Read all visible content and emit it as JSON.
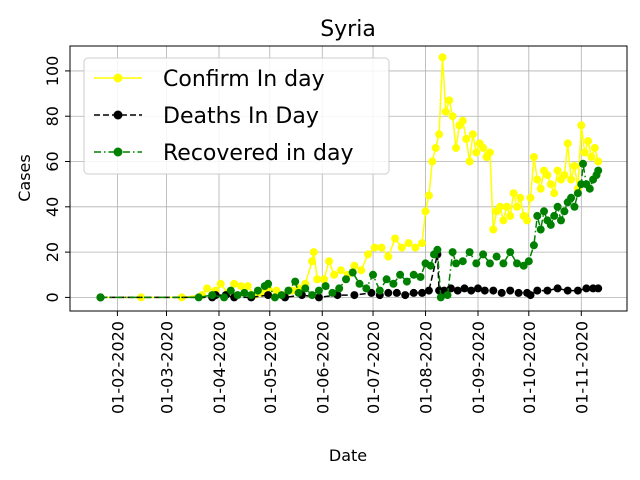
{
  "chart_data": {
    "type": "line",
    "title": "Syria",
    "xlabel": "Date",
    "ylabel": "Cases",
    "xlim": [
      "2020-01-04",
      "2020-11-28"
    ],
    "ylim": [
      -6,
      111
    ],
    "grid": true,
    "legend_position": "top-left",
    "x_ticks": [
      "2020-02-01",
      "2020-03-01",
      "2020-04-01",
      "2020-05-01",
      "2020-06-01",
      "2020-07-01",
      "2020-08-01",
      "2020-09-01",
      "2020-10-01",
      "2020-11-01"
    ],
    "x_tick_labels": [
      "01-02-2020",
      "01-03-2020",
      "01-04-2020",
      "01-05-2020",
      "01-06-2020",
      "01-07-2020",
      "01-08-2020",
      "01-09-2020",
      "01-10-2020",
      "01-11-2020"
    ],
    "y_ticks": [
      0,
      20,
      40,
      60,
      80,
      100
    ],
    "y_tick_labels": [
      "0",
      "20",
      "40",
      "60",
      "80",
      "100"
    ],
    "series": [
      {
        "name": "Confirm In day",
        "color": "#ffff00",
        "line_style": "solid",
        "marker": "circle",
        "points": [
          [
            "2020-01-22",
            0
          ],
          [
            "2020-02-15",
            0
          ],
          [
            "2020-03-10",
            0
          ],
          [
            "2020-03-22",
            1
          ],
          [
            "2020-03-25",
            4
          ],
          [
            "2020-03-30",
            3
          ],
          [
            "2020-04-02",
            6
          ],
          [
            "2020-04-06",
            2
          ],
          [
            "2020-04-10",
            6
          ],
          [
            "2020-04-14",
            5
          ],
          [
            "2020-04-18",
            5
          ],
          [
            "2020-04-22",
            1
          ],
          [
            "2020-04-26",
            2
          ],
          [
            "2020-04-30",
            4
          ],
          [
            "2020-05-05",
            3
          ],
          [
            "2020-05-10",
            1
          ],
          [
            "2020-05-14",
            3
          ],
          [
            "2020-05-18",
            4
          ],
          [
            "2020-05-22",
            6
          ],
          [
            "2020-05-26",
            16
          ],
          [
            "2020-05-27",
            20
          ],
          [
            "2020-05-29",
            8
          ],
          [
            "2020-06-02",
            8
          ],
          [
            "2020-06-05",
            16
          ],
          [
            "2020-06-08",
            10
          ],
          [
            "2020-06-12",
            12
          ],
          [
            "2020-06-16",
            10
          ],
          [
            "2020-06-20",
            14
          ],
          [
            "2020-06-24",
            12
          ],
          [
            "2020-06-28",
            19
          ],
          [
            "2020-07-02",
            22
          ],
          [
            "2020-07-06",
            22
          ],
          [
            "2020-07-10",
            18
          ],
          [
            "2020-07-14",
            26
          ],
          [
            "2020-07-18",
            22
          ],
          [
            "2020-07-22",
            24
          ],
          [
            "2020-07-26",
            22
          ],
          [
            "2020-07-30",
            24
          ],
          [
            "2020-08-01",
            38
          ],
          [
            "2020-08-03",
            45
          ],
          [
            "2020-08-05",
            60
          ],
          [
            "2020-08-07",
            66
          ],
          [
            "2020-08-09",
            72
          ],
          [
            "2020-08-11",
            106
          ],
          [
            "2020-08-13",
            82
          ],
          [
            "2020-08-15",
            87
          ],
          [
            "2020-08-17",
            80
          ],
          [
            "2020-08-19",
            66
          ],
          [
            "2020-08-21",
            76
          ],
          [
            "2020-08-23",
            78
          ],
          [
            "2020-08-25",
            70
          ],
          [
            "2020-08-27",
            60
          ],
          [
            "2020-08-29",
            72
          ],
          [
            "2020-08-31",
            64
          ],
          [
            "2020-09-02",
            68
          ],
          [
            "2020-09-04",
            66
          ],
          [
            "2020-09-06",
            62
          ],
          [
            "2020-09-08",
            64
          ],
          [
            "2020-09-10",
            30
          ],
          [
            "2020-09-12",
            38
          ],
          [
            "2020-09-14",
            40
          ],
          [
            "2020-09-16",
            34
          ],
          [
            "2020-09-18",
            40
          ],
          [
            "2020-09-20",
            36
          ],
          [
            "2020-09-22",
            46
          ],
          [
            "2020-09-24",
            40
          ],
          [
            "2020-09-26",
            44
          ],
          [
            "2020-09-28",
            36
          ],
          [
            "2020-09-30",
            34
          ],
          [
            "2020-10-02",
            44
          ],
          [
            "2020-10-04",
            62
          ],
          [
            "2020-10-06",
            52
          ],
          [
            "2020-10-08",
            48
          ],
          [
            "2020-10-10",
            56
          ],
          [
            "2020-10-12",
            54
          ],
          [
            "2020-10-14",
            50
          ],
          [
            "2020-10-16",
            46
          ],
          [
            "2020-10-18",
            56
          ],
          [
            "2020-10-20",
            52
          ],
          [
            "2020-10-22",
            54
          ],
          [
            "2020-10-24",
            68
          ],
          [
            "2020-10-26",
            52
          ],
          [
            "2020-10-28",
            58
          ],
          [
            "2020-10-30",
            48
          ],
          [
            "2020-11-01",
            76
          ],
          [
            "2020-11-03",
            64
          ],
          [
            "2020-11-05",
            69
          ],
          [
            "2020-11-07",
            62
          ],
          [
            "2020-11-09",
            66
          ],
          [
            "2020-11-11",
            60
          ]
        ]
      },
      {
        "name": "Deaths In Day",
        "color": "#000000",
        "line_style": "dashed",
        "marker": "circle",
        "points": [
          [
            "2020-01-22",
            0
          ],
          [
            "2020-03-28",
            0
          ],
          [
            "2020-03-30",
            1
          ],
          [
            "2020-04-05",
            1
          ],
          [
            "2020-04-10",
            0
          ],
          [
            "2020-04-20",
            0
          ],
          [
            "2020-04-30",
            1
          ],
          [
            "2020-05-10",
            0
          ],
          [
            "2020-05-20",
            1
          ],
          [
            "2020-05-30",
            0
          ],
          [
            "2020-06-10",
            1
          ],
          [
            "2020-06-20",
            1
          ],
          [
            "2020-06-30",
            2
          ],
          [
            "2020-07-05",
            1
          ],
          [
            "2020-07-10",
            2
          ],
          [
            "2020-07-15",
            2
          ],
          [
            "2020-07-20",
            1
          ],
          [
            "2020-07-25",
            2
          ],
          [
            "2020-07-30",
            2
          ],
          [
            "2020-08-03",
            3
          ],
          [
            "2020-08-08",
            19
          ],
          [
            "2020-08-09",
            3
          ],
          [
            "2020-08-12",
            3
          ],
          [
            "2020-08-16",
            4
          ],
          [
            "2020-08-20",
            3
          ],
          [
            "2020-08-24",
            4
          ],
          [
            "2020-08-28",
            3
          ],
          [
            "2020-09-01",
            4
          ],
          [
            "2020-09-05",
            3
          ],
          [
            "2020-09-10",
            3
          ],
          [
            "2020-09-15",
            2
          ],
          [
            "2020-09-20",
            3
          ],
          [
            "2020-09-25",
            2
          ],
          [
            "2020-09-30",
            2
          ],
          [
            "2020-10-02",
            1
          ],
          [
            "2020-10-06",
            3
          ],
          [
            "2020-10-12",
            3
          ],
          [
            "2020-10-18",
            4
          ],
          [
            "2020-10-24",
            3
          ],
          [
            "2020-10-30",
            3
          ],
          [
            "2020-11-04",
            4
          ],
          [
            "2020-11-08",
            4
          ],
          [
            "2020-11-11",
            4
          ]
        ]
      },
      {
        "name": "Recovered in day",
        "color": "#008000",
        "line_style": "dashdot",
        "marker": "circle",
        "points": [
          [
            "2020-01-22",
            0
          ],
          [
            "2020-03-20",
            0
          ],
          [
            "2020-03-28",
            1
          ],
          [
            "2020-04-04",
            0
          ],
          [
            "2020-04-08",
            3
          ],
          [
            "2020-04-12",
            1
          ],
          [
            "2020-04-16",
            2
          ],
          [
            "2020-04-20",
            1
          ],
          [
            "2020-04-24",
            3
          ],
          [
            "2020-04-28",
            5
          ],
          [
            "2020-04-30",
            6
          ],
          [
            "2020-05-04",
            0
          ],
          [
            "2020-05-08",
            1
          ],
          [
            "2020-05-12",
            3
          ],
          [
            "2020-05-16",
            7
          ],
          [
            "2020-05-18",
            2
          ],
          [
            "2020-05-22",
            4
          ],
          [
            "2020-05-26",
            1
          ],
          [
            "2020-05-30",
            3
          ],
          [
            "2020-06-03",
            5
          ],
          [
            "2020-06-07",
            2
          ],
          [
            "2020-06-11",
            4
          ],
          [
            "2020-06-15",
            8
          ],
          [
            "2020-06-19",
            11
          ],
          [
            "2020-06-23",
            6
          ],
          [
            "2020-06-27",
            4
          ],
          [
            "2020-07-01",
            10
          ],
          [
            "2020-07-05",
            3
          ],
          [
            "2020-07-09",
            8
          ],
          [
            "2020-07-13",
            6
          ],
          [
            "2020-07-17",
            10
          ],
          [
            "2020-07-21",
            7
          ],
          [
            "2020-07-25",
            10
          ],
          [
            "2020-07-29",
            9
          ],
          [
            "2020-08-01",
            15
          ],
          [
            "2020-08-04",
            14
          ],
          [
            "2020-08-06",
            19
          ],
          [
            "2020-08-08",
            21
          ],
          [
            "2020-08-10",
            0
          ],
          [
            "2020-08-14",
            1
          ],
          [
            "2020-08-17",
            20
          ],
          [
            "2020-08-19",
            15
          ],
          [
            "2020-08-23",
            16
          ],
          [
            "2020-08-27",
            20
          ],
          [
            "2020-08-31",
            15
          ],
          [
            "2020-09-04",
            19
          ],
          [
            "2020-09-08",
            15
          ],
          [
            "2020-09-12",
            18
          ],
          [
            "2020-09-16",
            15
          ],
          [
            "2020-09-20",
            20
          ],
          [
            "2020-09-24",
            15
          ],
          [
            "2020-09-28",
            14
          ],
          [
            "2020-10-01",
            16
          ],
          [
            "2020-10-04",
            23
          ],
          [
            "2020-10-06",
            36
          ],
          [
            "2020-10-08",
            30
          ],
          [
            "2020-10-10",
            38
          ],
          [
            "2020-10-12",
            34
          ],
          [
            "2020-10-14",
            32
          ],
          [
            "2020-10-16",
            36
          ],
          [
            "2020-10-18",
            40
          ],
          [
            "2020-10-20",
            34
          ],
          [
            "2020-10-22",
            38
          ],
          [
            "2020-10-24",
            42
          ],
          [
            "2020-10-26",
            44
          ],
          [
            "2020-10-28",
            40
          ],
          [
            "2020-10-30",
            46
          ],
          [
            "2020-11-01",
            50
          ],
          [
            "2020-11-02",
            59
          ],
          [
            "2020-11-04",
            50
          ],
          [
            "2020-11-06",
            48
          ],
          [
            "2020-11-08",
            52
          ],
          [
            "2020-11-10",
            54
          ],
          [
            "2020-11-11",
            56
          ]
        ]
      }
    ]
  }
}
